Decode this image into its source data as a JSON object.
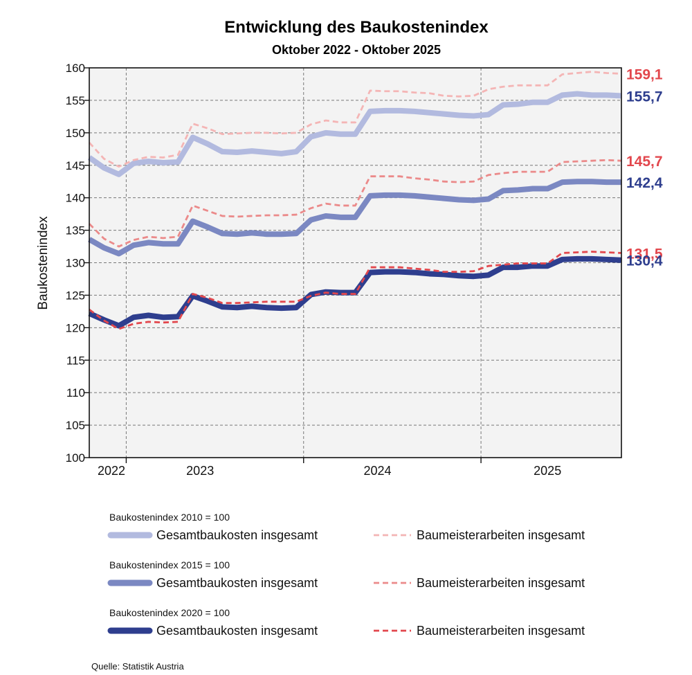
{
  "chart_data": {
    "type": "line",
    "title": "Entwicklung des Baukostenindex",
    "subtitle": "Oktober 2022 - Oktober 2025",
    "ylabel": "Baukostenindex",
    "ylim": [
      100,
      160
    ],
    "yticks": [
      100,
      105,
      110,
      115,
      120,
      125,
      130,
      135,
      140,
      145,
      150,
      155,
      160
    ],
    "grid": true,
    "x": [
      "2022-10",
      "2022-11",
      "2022-12",
      "2023-01",
      "2023-02",
      "2023-03",
      "2023-04",
      "2023-05",
      "2023-06",
      "2023-07",
      "2023-08",
      "2023-09",
      "2023-10",
      "2023-11",
      "2023-12",
      "2024-01",
      "2024-02",
      "2024-03",
      "2024-04",
      "2024-05",
      "2024-06",
      "2024-07",
      "2024-08",
      "2024-09",
      "2024-10",
      "2024-11",
      "2024-12",
      "2025-01",
      "2025-02",
      "2025-03",
      "2025-04",
      "2025-05",
      "2025-06",
      "2025-07",
      "2025-08",
      "2025-09",
      "2025-10"
    ],
    "year_labels": [
      {
        "label": "2022",
        "index": 1.5
      },
      {
        "label": "2023",
        "index": 7.5
      },
      {
        "label": "2024",
        "index": 19.5
      },
      {
        "label": "2025",
        "index": 31
      }
    ],
    "year_boundaries": [
      2.5,
      14.5,
      26.5
    ],
    "series": [
      {
        "name": "Gesamtbaukosten insgesamt",
        "base": "Baukostenindex 2010 = 100",
        "style": "thick",
        "color": "#b2badf",
        "values": [
          146.2,
          144.6,
          143.6,
          145.3,
          145.6,
          145.4,
          145.5,
          149.3,
          148.3,
          147.1,
          147.0,
          147.2,
          147.0,
          146.8,
          147.1,
          149.4,
          150.0,
          149.8,
          149.8,
          153.3,
          153.4,
          153.4,
          153.3,
          153.1,
          152.9,
          152.7,
          152.6,
          152.8,
          154.3,
          154.4,
          154.7,
          154.7,
          155.8,
          156.0,
          155.8,
          155.8,
          155.7
        ]
      },
      {
        "name": "Baumeisterarbeiten insgesamt",
        "base": "Baukostenindex 2010 = 100",
        "style": "dashed",
        "color": "#f4b5b5",
        "values": [
          148.5,
          146.0,
          144.8,
          145.8,
          146.3,
          146.2,
          146.6,
          151.4,
          150.7,
          149.8,
          149.9,
          150.0,
          150.0,
          149.9,
          150.0,
          151.3,
          151.9,
          151.6,
          151.6,
          156.5,
          156.4,
          156.4,
          156.2,
          156.1,
          155.7,
          155.6,
          155.7,
          156.7,
          157.1,
          157.3,
          157.3,
          157.3,
          159.0,
          159.2,
          159.4,
          159.2,
          159.1
        ]
      },
      {
        "name": "Gesamtbaukosten insgesamt",
        "base": "Baukostenindex 2015 = 100",
        "style": "thick",
        "color": "#7b88c2",
        "values": [
          133.6,
          132.3,
          131.4,
          132.7,
          133.1,
          132.9,
          132.9,
          136.4,
          135.5,
          134.5,
          134.4,
          134.6,
          134.4,
          134.4,
          134.5,
          136.6,
          137.2,
          137.0,
          137.0,
          140.3,
          140.4,
          140.4,
          140.3,
          140.1,
          139.9,
          139.7,
          139.6,
          139.8,
          141.1,
          141.2,
          141.4,
          141.4,
          142.4,
          142.5,
          142.5,
          142.4,
          142.4
        ]
      },
      {
        "name": "Baumeisterarbeiten insgesamt",
        "base": "Baukostenindex 2015 = 100",
        "style": "dashed",
        "color": "#eb8a8a",
        "values": [
          136.0,
          133.7,
          132.5,
          133.5,
          134.0,
          133.8,
          134.0,
          138.8,
          138.0,
          137.2,
          137.1,
          137.2,
          137.3,
          137.3,
          137.4,
          138.4,
          139.1,
          138.8,
          138.8,
          143.3,
          143.3,
          143.3,
          143.0,
          142.8,
          142.5,
          142.4,
          142.5,
          143.5,
          143.8,
          144.0,
          144.0,
          144.0,
          145.5,
          145.6,
          145.7,
          145.8,
          145.7
        ]
      },
      {
        "name": "Gesamtbaukosten insgesamt",
        "base": "Baukostenindex 2020 = 100",
        "style": "thick",
        "color": "#2e3e8e",
        "values": [
          122.2,
          121.2,
          120.3,
          121.6,
          121.9,
          121.6,
          121.7,
          124.9,
          124.1,
          123.2,
          123.1,
          123.3,
          123.1,
          123.0,
          123.1,
          125.1,
          125.5,
          125.4,
          125.4,
          128.5,
          128.6,
          128.6,
          128.5,
          128.3,
          128.2,
          128.0,
          127.9,
          128.1,
          129.3,
          129.3,
          129.5,
          129.5,
          130.5,
          130.6,
          130.6,
          130.5,
          130.4
        ]
      },
      {
        "name": "Baumeisterarbeiten insgesamt",
        "base": "Baukostenindex 2020 = 100",
        "style": "dashed",
        "color": "#e2474d",
        "values": [
          122.8,
          121.1,
          119.8,
          120.6,
          120.9,
          120.8,
          120.9,
          125.2,
          124.6,
          123.8,
          123.8,
          123.9,
          124.0,
          124.0,
          124.0,
          124.9,
          125.4,
          125.2,
          125.2,
          129.3,
          129.3,
          129.3,
          129.1,
          128.9,
          128.6,
          128.6,
          128.7,
          129.5,
          129.7,
          129.9,
          129.9,
          129.9,
          131.5,
          131.6,
          131.7,
          131.6,
          131.5
        ]
      }
    ],
    "end_labels": [
      {
        "text": "159,1",
        "value": 159.1,
        "color": "#e2474d"
      },
      {
        "text": "155,7",
        "value": 155.7,
        "color": "#2e3e8e"
      },
      {
        "text": "145,7",
        "value": 145.7,
        "color": "#e2474d"
      },
      {
        "text": "142,4",
        "value": 142.4,
        "color": "#2e3e8e"
      },
      {
        "text": "131,5",
        "value": 131.5,
        "color": "#e2474d"
      },
      {
        "text": "130,4",
        "value": 130.4,
        "color": "#2e3e8e"
      }
    ],
    "legend": {
      "placement": "bottom",
      "groups": [
        {
          "heading": "Baukostenindex 2010 = 100",
          "series": [
            0,
            1
          ]
        },
        {
          "heading": "Baukostenindex 2015 = 100",
          "series": [
            2,
            3
          ]
        },
        {
          "heading": "Baukostenindex 2020 = 100",
          "series": [
            4,
            5
          ]
        }
      ]
    },
    "source": "Quelle: Statistik Austria"
  }
}
